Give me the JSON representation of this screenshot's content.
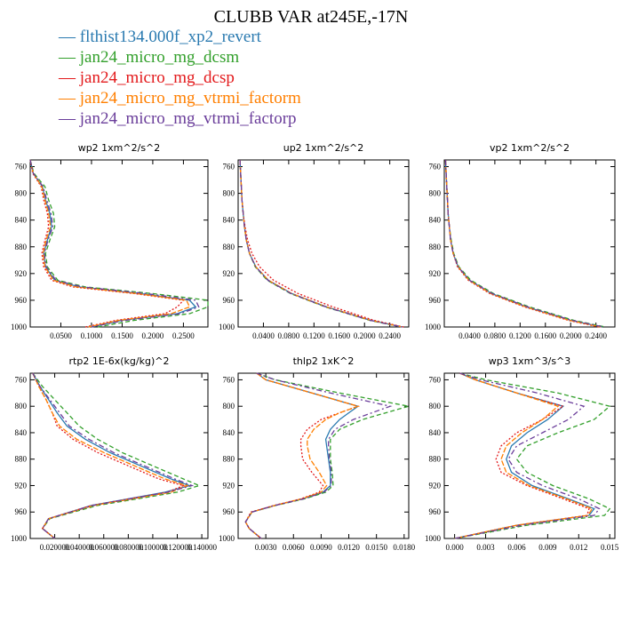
{
  "title": "CLUBB VAR at245E,-17N",
  "legend": [
    {
      "label": "flthist134.000f_xp2_revert",
      "color": "#2a7ab0",
      "dash": ""
    },
    {
      "label": "jan24_micro_mg_dcsm",
      "color": "#33a02c",
      "dash": "5,3"
    },
    {
      "label": "jan24_micro_mg_dcsp",
      "color": "#e31a1c",
      "dash": "2,2"
    },
    {
      "label": "jan24_micro_mg_vtrmi_factorm",
      "color": "#ff7f00",
      "dash": "6,2"
    },
    {
      "label": "jan24_micro_mg_vtrmi_factorp",
      "color": "#6a3d9a",
      "dash": "6,3,2,3"
    }
  ],
  "chart_data": [
    {
      "type": "line",
      "title": "wp2   1xm^2/s^2",
      "xlim": [
        0,
        0.29
      ],
      "ylim": [
        1000,
        750
      ],
      "xticks": [
        "0.0500",
        "0.1000",
        "0.1500",
        "0.2000",
        "0.2500"
      ],
      "xtick_values": [
        0.05,
        0.1,
        0.15,
        0.2,
        0.25
      ],
      "yticks": [
        "760",
        "800",
        "840",
        "880",
        "920",
        "960",
        "1000"
      ],
      "ytick_values": [
        760,
        800,
        840,
        880,
        920,
        960,
        1000
      ],
      "y": [
        750,
        770,
        790,
        810,
        830,
        850,
        870,
        890,
        910,
        930,
        940,
        950,
        960,
        970,
        980,
        990,
        1000
      ],
      "series": [
        {
          "values": [
            0,
            0.005,
            0.02,
            0.025,
            0.032,
            0.035,
            0.028,
            0.022,
            0.025,
            0.04,
            0.08,
            0.18,
            0.26,
            0.27,
            0.24,
            0.15,
            0.1
          ]
        },
        {
          "values": [
            0,
            0.006,
            0.024,
            0.03,
            0.038,
            0.04,
            0.032,
            0.025,
            0.028,
            0.045,
            0.09,
            0.2,
            0.29,
            0.29,
            0.26,
            0.17,
            0.11
          ]
        },
        {
          "values": [
            0,
            0.004,
            0.018,
            0.022,
            0.028,
            0.03,
            0.024,
            0.019,
            0.022,
            0.035,
            0.07,
            0.17,
            0.25,
            0.24,
            0.22,
            0.14,
            0.09
          ]
        },
        {
          "values": [
            0,
            0.005,
            0.019,
            0.024,
            0.03,
            0.033,
            0.026,
            0.021,
            0.024,
            0.038,
            0.075,
            0.175,
            0.255,
            0.26,
            0.23,
            0.145,
            0.095
          ]
        },
        {
          "values": [
            0,
            0.005,
            0.021,
            0.027,
            0.034,
            0.037,
            0.029,
            0.023,
            0.026,
            0.042,
            0.085,
            0.19,
            0.27,
            0.275,
            0.245,
            0.155,
            0.1
          ]
        }
      ]
    },
    {
      "type": "line",
      "title": "up2   1xm^2/s^2",
      "xlim": [
        0,
        0.27
      ],
      "ylim": [
        1000,
        750
      ],
      "xticks": [
        "0.0400",
        "0.0800",
        "0.1200",
        "0.1600",
        "0.2000",
        "0.2400"
      ],
      "xtick_values": [
        0.04,
        0.08,
        0.12,
        0.16,
        0.2,
        0.24
      ],
      "yticks": [
        "760",
        "800",
        "840",
        "880",
        "920",
        "960",
        "1000"
      ],
      "ytick_values": [
        760,
        800,
        840,
        880,
        920,
        960,
        1000
      ],
      "y": [
        750,
        770,
        790,
        810,
        830,
        850,
        870,
        890,
        910,
        930,
        950,
        970,
        990,
        1000
      ],
      "series": [
        {
          "values": [
            0.003,
            0.004,
            0.005,
            0.006,
            0.008,
            0.01,
            0.013,
            0.018,
            0.028,
            0.048,
            0.085,
            0.14,
            0.21,
            0.26
          ]
        },
        {
          "values": [
            0.003,
            0.004,
            0.005,
            0.006,
            0.008,
            0.01,
            0.013,
            0.018,
            0.027,
            0.046,
            0.083,
            0.138,
            0.208,
            0.258
          ]
        },
        {
          "values": [
            0.003,
            0.004,
            0.005,
            0.006,
            0.008,
            0.011,
            0.015,
            0.022,
            0.034,
            0.056,
            0.095,
            0.15,
            0.215,
            0.262
          ]
        },
        {
          "values": [
            0.003,
            0.004,
            0.005,
            0.006,
            0.008,
            0.01,
            0.013,
            0.018,
            0.028,
            0.048,
            0.085,
            0.14,
            0.21,
            0.26
          ]
        },
        {
          "values": [
            0.003,
            0.004,
            0.005,
            0.006,
            0.008,
            0.01,
            0.013,
            0.018,
            0.028,
            0.047,
            0.084,
            0.139,
            0.209,
            0.259
          ]
        }
      ]
    },
    {
      "type": "line",
      "title": "vp2   1xm^2/s^2",
      "xlim": [
        0,
        0.27
      ],
      "ylim": [
        1000,
        750
      ],
      "xticks": [
        "0.0400",
        "0.0800",
        "0.1200",
        "0.1600",
        "0.2000",
        "0.2400"
      ],
      "xtick_values": [
        0.04,
        0.08,
        0.12,
        0.16,
        0.2,
        0.24
      ],
      "yticks": [
        "760",
        "800",
        "840",
        "880",
        "920",
        "960",
        "1000"
      ],
      "ytick_values": [
        760,
        800,
        840,
        880,
        920,
        960,
        1000
      ],
      "y": [
        750,
        770,
        790,
        810,
        830,
        850,
        870,
        890,
        910,
        930,
        950,
        970,
        990,
        1000
      ],
      "series": [
        {
          "values": [
            0.002,
            0.003,
            0.004,
            0.005,
            0.006,
            0.008,
            0.01,
            0.014,
            0.022,
            0.04,
            0.075,
            0.13,
            0.2,
            0.25
          ]
        },
        {
          "values": [
            0.002,
            0.003,
            0.004,
            0.005,
            0.006,
            0.008,
            0.011,
            0.015,
            0.023,
            0.042,
            0.078,
            0.135,
            0.205,
            0.255
          ]
        },
        {
          "values": [
            0.002,
            0.003,
            0.004,
            0.005,
            0.006,
            0.008,
            0.01,
            0.014,
            0.021,
            0.038,
            0.072,
            0.127,
            0.196,
            0.245
          ]
        },
        {
          "values": [
            0.002,
            0.003,
            0.004,
            0.005,
            0.006,
            0.008,
            0.01,
            0.014,
            0.022,
            0.039,
            0.074,
            0.129,
            0.198,
            0.248
          ]
        },
        {
          "values": [
            0.002,
            0.003,
            0.004,
            0.005,
            0.006,
            0.008,
            0.01,
            0.014,
            0.022,
            0.04,
            0.076,
            0.132,
            0.202,
            0.252
          ]
        }
      ]
    },
    {
      "type": "line",
      "title": "rtp2   1E-6x(kg/kg)^2",
      "xlim": [
        0,
        0.145
      ],
      "ylim": [
        1000,
        750
      ],
      "xticks": [
        "0.020000",
        "0.040000",
        "0.060000",
        "0.080000",
        "0.100000",
        "0.120000",
        "0.140000"
      ],
      "xtick_values": [
        0.02,
        0.04,
        0.06,
        0.08,
        0.1,
        0.12,
        0.14
      ],
      "yticks": [
        "760",
        "800",
        "840",
        "880",
        "920",
        "960",
        "1000"
      ],
      "ytick_values": [
        760,
        800,
        840,
        880,
        920,
        960,
        1000
      ],
      "y": [
        750,
        770,
        790,
        810,
        830,
        850,
        870,
        890,
        910,
        920,
        930,
        950,
        970,
        985,
        1000
      ],
      "series": [
        {
          "values": [
            0.002,
            0.008,
            0.015,
            0.022,
            0.03,
            0.045,
            0.065,
            0.09,
            0.115,
            0.13,
            0.11,
            0.05,
            0.015,
            0.01,
            0.02
          ]
        },
        {
          "values": [
            0.002,
            0.01,
            0.02,
            0.03,
            0.04,
            0.055,
            0.075,
            0.1,
            0.125,
            0.138,
            0.12,
            0.055,
            0.016,
            0.01,
            0.02
          ]
        },
        {
          "values": [
            0.002,
            0.007,
            0.013,
            0.018,
            0.022,
            0.035,
            0.055,
            0.08,
            0.105,
            0.125,
            0.112,
            0.05,
            0.015,
            0.01,
            0.02
          ]
        },
        {
          "values": [
            0.002,
            0.007,
            0.013,
            0.018,
            0.024,
            0.038,
            0.06,
            0.085,
            0.11,
            0.128,
            0.115,
            0.052,
            0.015,
            0.01,
            0.02
          ]
        },
        {
          "values": [
            0.002,
            0.008,
            0.016,
            0.024,
            0.032,
            0.048,
            0.068,
            0.093,
            0.118,
            0.132,
            0.112,
            0.051,
            0.015,
            0.01,
            0.02
          ]
        }
      ]
    },
    {
      "type": "line",
      "title": "thlp2   1xK^2",
      "xlim": [
        0,
        0.0185
      ],
      "ylim": [
        1000,
        750
      ],
      "xticks": [
        "0.0030",
        "0.0060",
        "0.0090",
        "0.0120",
        "0.0150",
        "0.0180"
      ],
      "xtick_values": [
        0.003,
        0.006,
        0.009,
        0.012,
        0.015,
        0.018
      ],
      "yticks": [
        "760",
        "800",
        "840",
        "880",
        "920",
        "960",
        "1000"
      ],
      "ytick_values": [
        760,
        800,
        840,
        880,
        920,
        960,
        1000
      ],
      "y": [
        750,
        760,
        780,
        800,
        810,
        820,
        835,
        850,
        860,
        880,
        900,
        920,
        930,
        940,
        950,
        960,
        975,
        985,
        1000
      ],
      "series": [
        {
          "values": [
            0.002,
            0.003,
            0.008,
            0.013,
            0.012,
            0.011,
            0.01,
            0.0095,
            0.0096,
            0.0098,
            0.01,
            0.01,
            0.0092,
            0.007,
            0.004,
            0.0015,
            0.0008,
            0.0012,
            0.0025
          ]
        },
        {
          "values": [
            0.002,
            0.004,
            0.011,
            0.0185,
            0.016,
            0.0135,
            0.011,
            0.01,
            0.01,
            0.01,
            0.0102,
            0.0103,
            0.0095,
            0.0072,
            0.0041,
            0.0015,
            0.0008,
            0.0012,
            0.0025
          ]
        },
        {
          "values": [
            0.002,
            0.003,
            0.008,
            0.013,
            0.011,
            0.009,
            0.0075,
            0.0068,
            0.0068,
            0.007,
            0.008,
            0.0092,
            0.0088,
            0.0068,
            0.0039,
            0.0014,
            0.0008,
            0.0012,
            0.0025
          ]
        },
        {
          "values": [
            0.002,
            0.003,
            0.008,
            0.013,
            0.011,
            0.0095,
            0.0082,
            0.0075,
            0.0075,
            0.0078,
            0.0088,
            0.0096,
            0.009,
            0.0069,
            0.004,
            0.0015,
            0.0008,
            0.0012,
            0.0025
          ]
        },
        {
          "values": [
            0.002,
            0.004,
            0.01,
            0.0165,
            0.0145,
            0.0125,
            0.0105,
            0.0098,
            0.0098,
            0.0099,
            0.0101,
            0.0101,
            0.0093,
            0.0071,
            0.004,
            0.0015,
            0.0008,
            0.0012,
            0.0025
          ]
        }
      ]
    },
    {
      "type": "line",
      "title": "wp3   1xm^3/s^3",
      "xlim": [
        -0.001,
        0.0155
      ],
      "ylim": [
        1000,
        750
      ],
      "xticks": [
        "0.000",
        "0.003",
        "0.006",
        "0.009",
        "0.012",
        "0.015"
      ],
      "xtick_values": [
        0.0,
        0.003,
        0.006,
        0.009,
        0.012,
        0.015
      ],
      "yticks": [
        "760",
        "800",
        "840",
        "880",
        "920",
        "960",
        "1000"
      ],
      "ytick_values": [
        760,
        800,
        840,
        880,
        920,
        960,
        1000
      ],
      "y": [
        750,
        760,
        780,
        800,
        820,
        840,
        860,
        880,
        900,
        920,
        940,
        955,
        965,
        980,
        1000
      ],
      "series": [
        {
          "values": [
            0.0005,
            0.002,
            0.006,
            0.0105,
            0.009,
            0.007,
            0.0055,
            0.005,
            0.0055,
            0.0075,
            0.011,
            0.0135,
            0.013,
            0.006,
            0.0
          ]
        },
        {
          "values": [
            0.0005,
            0.003,
            0.01,
            0.015,
            0.0135,
            0.01,
            0.007,
            0.006,
            0.007,
            0.0095,
            0.013,
            0.015,
            0.0145,
            0.007,
            0.0
          ]
        },
        {
          "values": [
            0.0005,
            0.002,
            0.006,
            0.0105,
            0.0085,
            0.006,
            0.0045,
            0.004,
            0.0045,
            0.007,
            0.0105,
            0.013,
            0.0128,
            0.006,
            0.0
          ]
        },
        {
          "values": [
            0.0005,
            0.002,
            0.006,
            0.01,
            0.0085,
            0.0065,
            0.005,
            0.0045,
            0.005,
            0.0072,
            0.0108,
            0.0133,
            0.0129,
            0.006,
            0.0
          ]
        },
        {
          "values": [
            0.0005,
            0.0025,
            0.008,
            0.0125,
            0.011,
            0.0085,
            0.006,
            0.0052,
            0.006,
            0.0085,
            0.012,
            0.014,
            0.0135,
            0.0065,
            0.0
          ]
        }
      ]
    }
  ]
}
